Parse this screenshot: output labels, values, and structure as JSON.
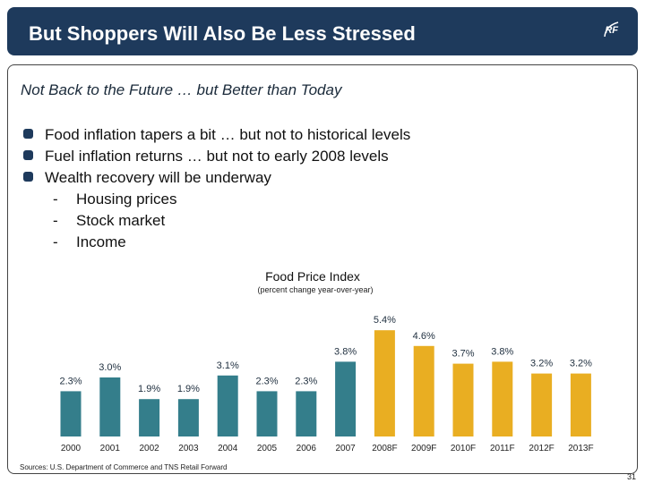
{
  "header": {
    "title": "But Shoppers Will Also Be Less Stressed",
    "logo_text": "RF"
  },
  "subtitle": "Not Back to the Future …  but Better than Today",
  "bullets": [
    "Food inflation tapers a bit … but not to historical levels",
    "Fuel inflation returns … but not to early 2008 levels",
    "Wealth recovery will be underway"
  ],
  "sub_bullets": [
    "Housing prices",
    "Stock market",
    "Income"
  ],
  "sub_bullet_marker": "-",
  "chart_data": {
    "type": "bar",
    "title": "Food Price Index",
    "subtitle": "(percent change year-over-year)",
    "categories": [
      "2000",
      "2001",
      "2002",
      "2003",
      "2004",
      "2005",
      "2006",
      "2007",
      "2008F",
      "2009F",
      "2010F",
      "2011F",
      "2012F",
      "2013F"
    ],
    "values": [
      2.3,
      3.0,
      1.9,
      1.9,
      3.1,
      2.3,
      2.3,
      3.8,
      5.4,
      4.6,
      3.7,
      3.8,
      3.2,
      3.2
    ],
    "data_labels": [
      "2.3%",
      "3.0%",
      "1.9%",
      "1.9%",
      "3.1%",
      "2.3%",
      "2.3%",
      "3.8%",
      "5.4%",
      "4.6%",
      "3.7%",
      "3.8%",
      "3.2%",
      "3.2%"
    ],
    "colors": {
      "actual": "#347e8b",
      "forecast": "#e9ae22"
    },
    "forecast_from": "2008F",
    "ylim": [
      0,
      5.4
    ],
    "grid": false,
    "legend": "none"
  },
  "footer": {
    "source": "Sources: U.S. Department of Commerce and TNS Retail Forward",
    "page": "31"
  }
}
